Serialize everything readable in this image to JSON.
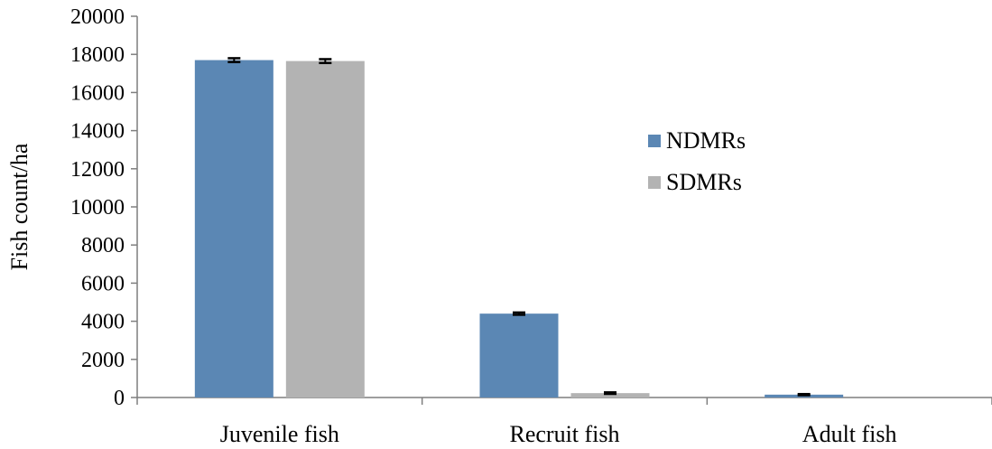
{
  "chart_data": {
    "type": "bar",
    "title": "",
    "xlabel": "",
    "ylabel": "Fish count/ha",
    "ylim": [
      0,
      20000
    ],
    "yticks": [
      0,
      2000,
      4000,
      6000,
      8000,
      10000,
      12000,
      14000,
      16000,
      18000,
      20000
    ],
    "categories": [
      "Juvenile fish",
      "Recruit fish",
      "Adult fish"
    ],
    "series": [
      {
        "name": "NDMRs",
        "color": "#5b87b4",
        "values": [
          17700,
          4400,
          150
        ],
        "errors": [
          100,
          60,
          30
        ]
      },
      {
        "name": "SDMRs",
        "color": "#b3b3b3",
        "values": [
          17650,
          230,
          0
        ],
        "errors": [
          100,
          40,
          0
        ]
      }
    ],
    "legend_position": "center-right",
    "grid": false
  }
}
